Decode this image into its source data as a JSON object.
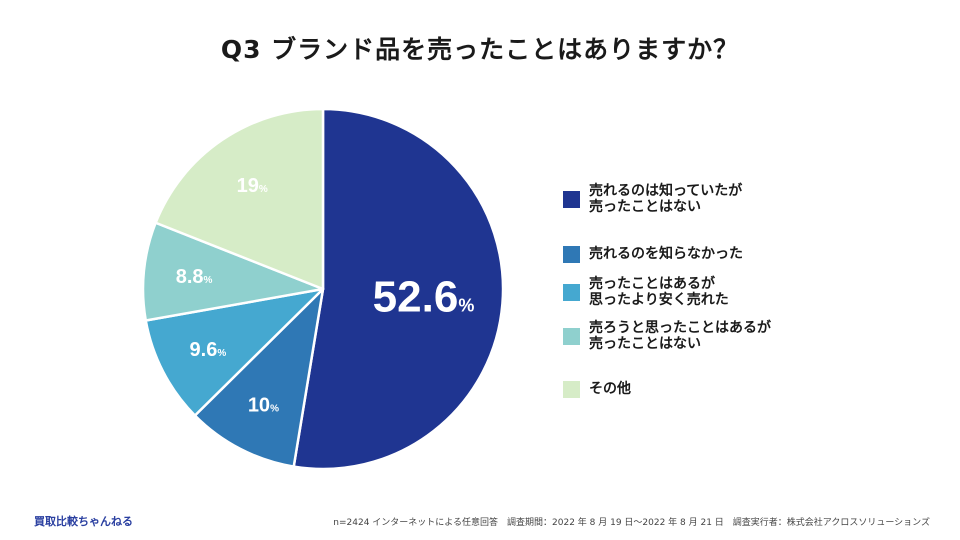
{
  "title": "Q3 ブランド品を売ったことはありますか？",
  "chart_data": {
    "type": "pie",
    "start_angle_deg": 0,
    "direction": "clockwise",
    "slices": [
      {
        "label": "売れるのは知っていたが\n売ったことはない",
        "value": 52.6,
        "display": "52.6",
        "color": "#1f3591"
      },
      {
        "label": "売れるのを知らなかった",
        "value": 10,
        "display": "10",
        "color": "#2f78b5"
      },
      {
        "label": "売ったことはあるが\n思ったより安く売れた",
        "value": 9.6,
        "display": "9.6",
        "color": "#45a8d0"
      },
      {
        "label": "売ろうと思ったことはあるが\n売ったことはない",
        "value": 8.8,
        "display": "8.8",
        "color": "#8fd0ce"
      },
      {
        "label": "その他",
        "value": 19,
        "display": "19",
        "color": "#d6ecc7"
      }
    ],
    "unit": "%"
  },
  "footer": {
    "brand": "買取比較ちゃんねる",
    "note": "n=2424 インターネットによる任意回答　調査期間：2022 年 8 月 19 日〜2022 年 8 月 21 日　調査実行者：株式会社アクロスソリューションズ"
  }
}
